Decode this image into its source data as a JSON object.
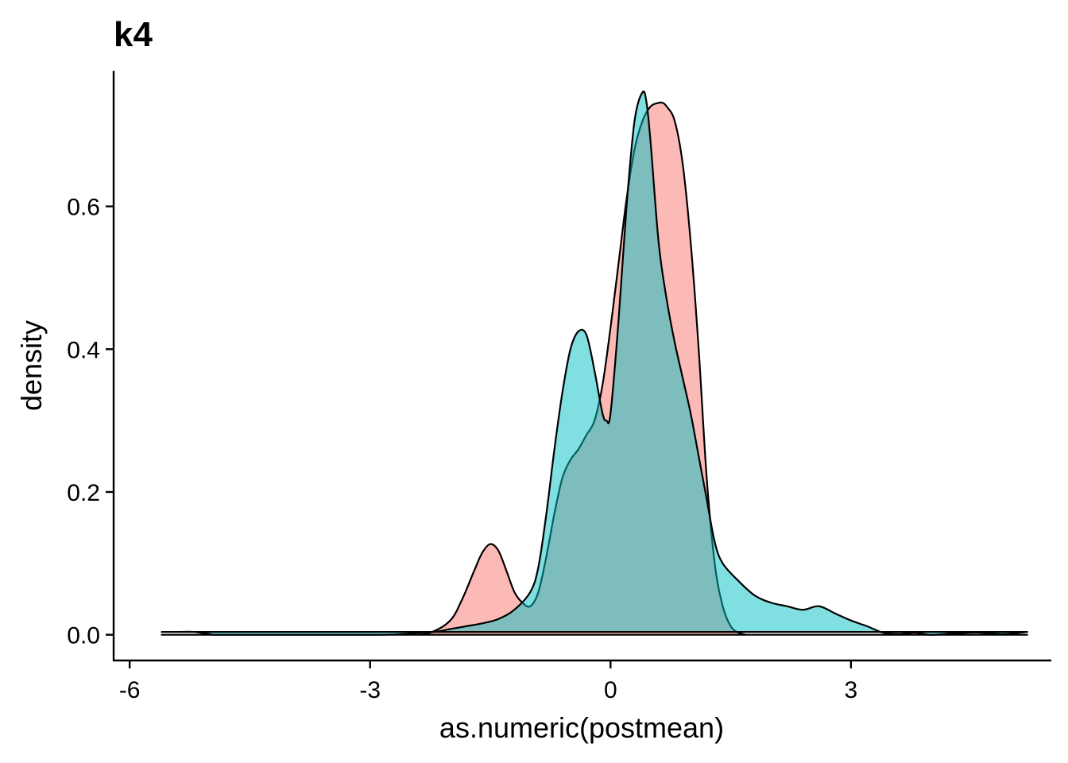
{
  "chart_data": {
    "type": "area",
    "title": "k4",
    "xlabel": "as.numeric(postmean)",
    "ylabel": "density",
    "xlim": [
      -6.2,
      5.5
    ],
    "ylim": [
      -0.036,
      0.79
    ],
    "xticks": [
      -6,
      -3,
      0,
      3
    ],
    "xtick_labels": [
      "-6",
      "-3",
      "0",
      "3"
    ],
    "yticks": [
      0.0,
      0.2,
      0.4,
      0.6
    ],
    "ytick_labels": [
      "0.0",
      "0.2",
      "0.4",
      "0.6"
    ],
    "grid": false,
    "legend": "none",
    "series": [
      {
        "color": "#F8766D",
        "fill_opacity": 0.5,
        "x": [
          -5.6,
          -5.2,
          -4.8,
          -3.0,
          -2.5,
          -2.25,
          -2.0,
          -1.85,
          -1.7,
          -1.6,
          -1.5,
          -1.4,
          -1.3,
          -1.2,
          -1.1,
          -1.0,
          -0.9,
          -0.8,
          -0.7,
          -0.6,
          -0.5,
          -0.4,
          -0.3,
          -0.2,
          -0.1,
          0.0,
          0.1,
          0.2,
          0.3,
          0.4,
          0.5,
          0.6,
          0.65,
          0.7,
          0.8,
          0.9,
          1.0,
          1.1,
          1.2,
          1.3,
          1.4,
          1.5,
          1.6,
          1.7,
          1.8,
          1.9,
          2.0,
          2.5,
          3.0,
          4.0,
          5.2
        ],
        "y": [
          0.0,
          0.0,
          0.0,
          0.0,
          0.0,
          0.003,
          0.02,
          0.05,
          0.09,
          0.115,
          0.127,
          0.118,
          0.09,
          0.06,
          0.045,
          0.04,
          0.06,
          0.11,
          0.17,
          0.22,
          0.245,
          0.26,
          0.28,
          0.3,
          0.35,
          0.43,
          0.52,
          0.61,
          0.68,
          0.72,
          0.74,
          0.745,
          0.745,
          0.74,
          0.72,
          0.66,
          0.55,
          0.4,
          0.22,
          0.1,
          0.04,
          0.012,
          0.003,
          0.0,
          0.0,
          0.0,
          0.0,
          0.0,
          0.0,
          0.0,
          0.0
        ]
      },
      {
        "color": "#00BFC4",
        "fill_opacity": 0.5,
        "x": [
          -5.6,
          -5.4,
          -5.2,
          -5.0,
          -4.8,
          -3.0,
          -2.6,
          -2.4,
          -2.2,
          -2.0,
          -1.8,
          -1.6,
          -1.4,
          -1.2,
          -1.0,
          -0.9,
          -0.8,
          -0.7,
          -0.6,
          -0.5,
          -0.4,
          -0.3,
          -0.2,
          -0.1,
          -0.05,
          0.0,
          0.1,
          0.2,
          0.3,
          0.4,
          0.45,
          0.5,
          0.6,
          0.7,
          0.8,
          0.9,
          1.0,
          1.1,
          1.2,
          1.3,
          1.4,
          1.6,
          1.8,
          2.0,
          2.2,
          2.4,
          2.6,
          2.8,
          3.0,
          3.2,
          3.4,
          3.6,
          3.8,
          4.0,
          4.3,
          4.6,
          4.9,
          5.2
        ],
        "y": [
          0.004,
          0.004,
          0.004,
          0.001,
          0.0,
          0.0,
          0.001,
          0.003,
          0.004,
          0.008,
          0.012,
          0.016,
          0.022,
          0.035,
          0.06,
          0.095,
          0.17,
          0.26,
          0.34,
          0.4,
          0.425,
          0.42,
          0.37,
          0.31,
          0.3,
          0.31,
          0.44,
          0.6,
          0.72,
          0.76,
          0.745,
          0.69,
          0.55,
          0.47,
          0.41,
          0.36,
          0.31,
          0.25,
          0.19,
          0.13,
          0.1,
          0.075,
          0.055,
          0.045,
          0.04,
          0.035,
          0.04,
          0.03,
          0.02,
          0.012,
          0.003,
          0.001,
          0.003,
          0.0,
          0.002,
          0.003,
          0.001,
          0.004
        ]
      }
    ]
  }
}
